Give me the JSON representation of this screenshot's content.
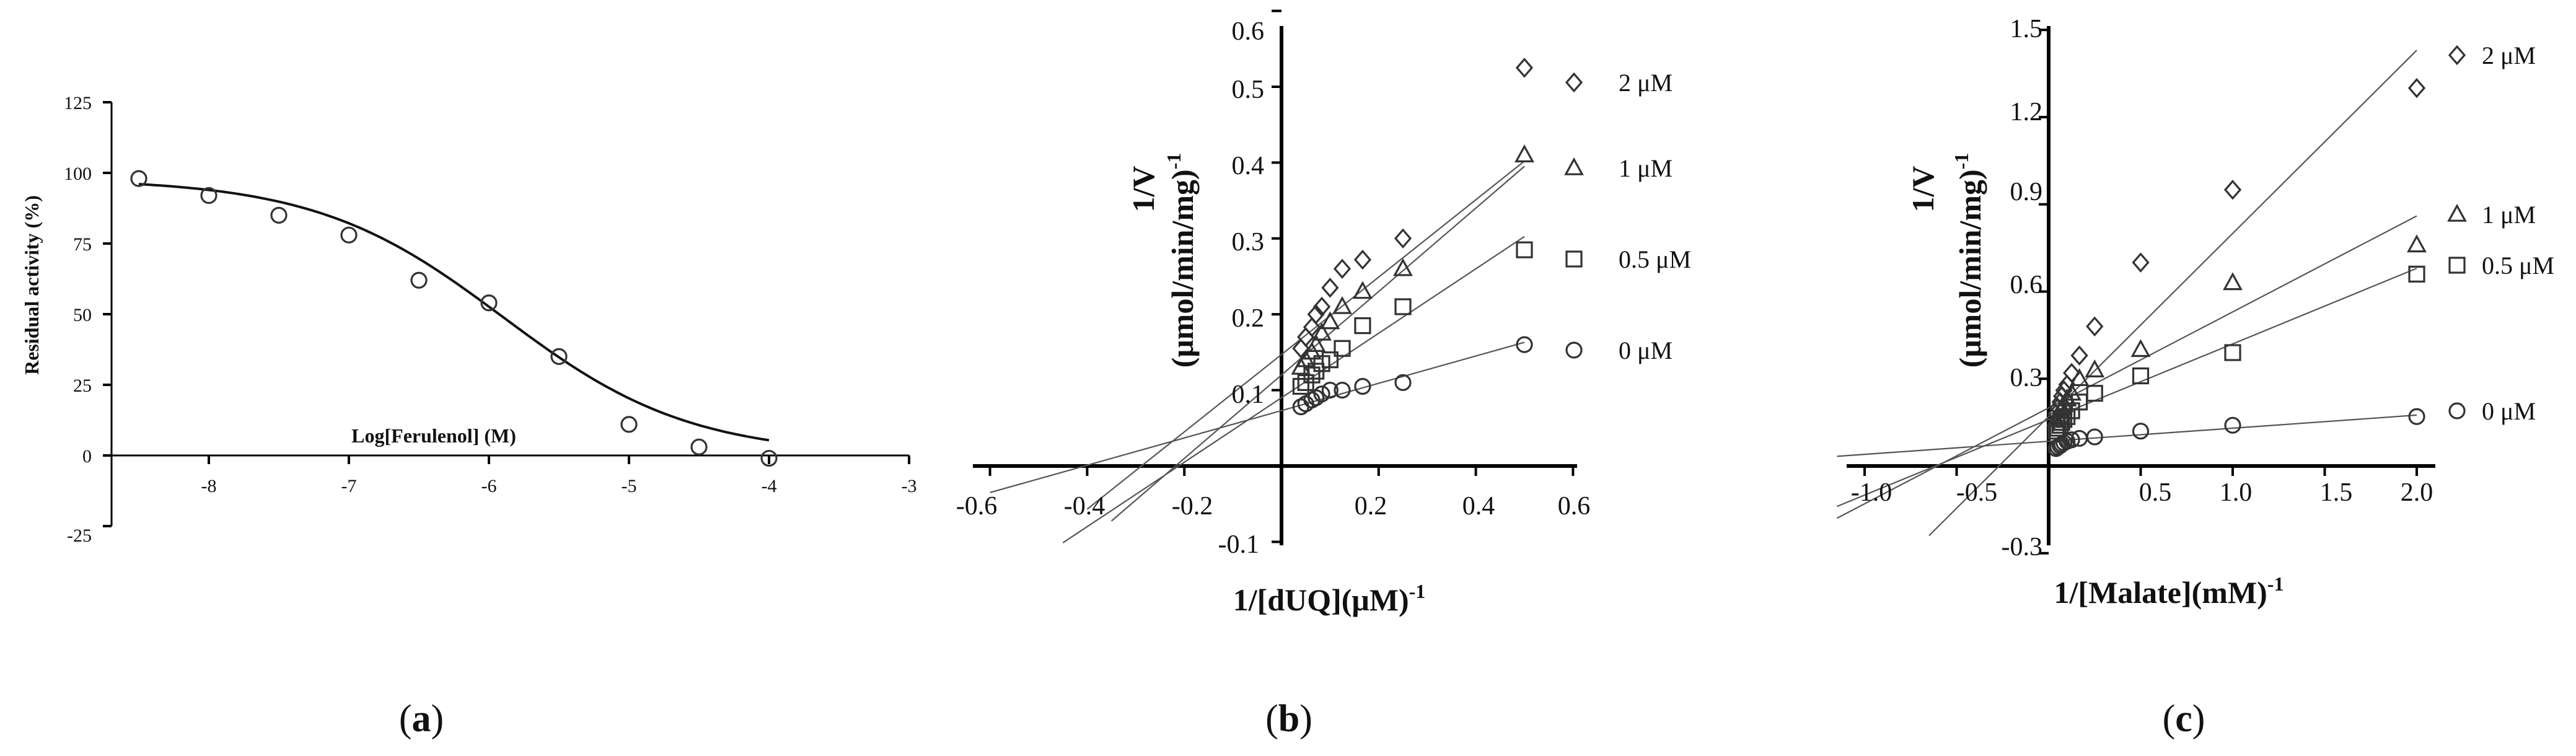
{
  "chart_data": [
    {
      "type": "scatter",
      "panel_label": "a",
      "xlabel": "Log[Ferulenol]  (M)",
      "ylabel": "Residual activity (%)",
      "xlim": [
        -8.8,
        -3
      ],
      "ylim": [
        -25,
        125
      ],
      "xticks": [
        "-8",
        "-7",
        "-6",
        "-5",
        "-4",
        "-3"
      ],
      "yticks": [
        "-25",
        "0",
        "25",
        "50",
        "75",
        "100",
        "125"
      ],
      "series": [
        {
          "name": "Residual activity",
          "marker": "circle",
          "x": [
            -8.5,
            -8.0,
            -7.5,
            -7.0,
            -6.5,
            -6.0,
            -5.5,
            -5.0,
            -4.5,
            -4.0
          ],
          "y": [
            98,
            92,
            85,
            78,
            62,
            54,
            35,
            11,
            3,
            -1
          ]
        }
      ],
      "fit": {
        "model": "sigmoidal dose-response",
        "top": 98,
        "bottom": 0,
        "logIC50": -5.9,
        "hill": -0.65
      }
    },
    {
      "type": "scatter",
      "panel_label": "b",
      "xlabel": "1/[dUQ](μM)",
      "xlabel_sup": "-1",
      "ylabel": "1/V",
      "ylabel2": "(μmol/min/mg)",
      "ylabel2_sup": "-1",
      "xlim": [
        -0.65,
        0.6
      ],
      "ylim": [
        -0.1,
        0.6
      ],
      "xticks": [
        "-0.6",
        "-0.4",
        "-0.2",
        "0.2",
        "0.4",
        "0.6"
      ],
      "yticks": [
        "-0.1",
        "0.1",
        "0.2",
        "0.3",
        "0.4",
        "0.5",
        "0.6"
      ],
      "series": [
        {
          "name": "2 μM",
          "marker": "diamond",
          "x": [
            0.5,
            0.25,
            0.167,
            0.125,
            0.1,
            0.083,
            0.071,
            0.0625,
            0.05,
            0.04
          ],
          "y": [
            0.525,
            0.3,
            0.272,
            0.26,
            0.235,
            0.21,
            0.2,
            0.183,
            0.17,
            0.155
          ],
          "fit": [
            0.51,
            0.147
          ]
        },
        {
          "name": "1 μM",
          "marker": "triangle",
          "x": [
            0.5,
            0.25,
            0.167,
            0.125,
            0.1,
            0.083,
            0.071,
            0.0625,
            0.05,
            0.04
          ],
          "y": [
            0.41,
            0.26,
            0.23,
            0.21,
            0.19,
            0.175,
            0.16,
            0.15,
            0.14,
            0.13
          ],
          "fit": [
            0.55,
            0.12
          ]
        },
        {
          "name": "0.5 μM",
          "marker": "square",
          "x": [
            0.5,
            0.25,
            0.167,
            0.125,
            0.1,
            0.083,
            0.071,
            0.0625,
            0.05,
            0.04
          ],
          "y": [
            0.285,
            0.21,
            0.185,
            0.155,
            0.14,
            0.135,
            0.125,
            0.12,
            0.11,
            0.105
          ],
          "fit": [
            0.425,
            0.09
          ]
        },
        {
          "name": "0 μM",
          "marker": "circle",
          "x": [
            0.5,
            0.25,
            0.167,
            0.125,
            0.1,
            0.083,
            0.071,
            0.0625,
            0.05,
            0.04
          ],
          "y": [
            0.16,
            0.11,
            0.105,
            0.1,
            0.1,
            0.095,
            0.09,
            0.087,
            0.082,
            0.078
          ],
          "fit": [
            0.18,
            0.073
          ]
        }
      ]
    },
    {
      "type": "scatter",
      "panel_label": "c",
      "xlabel": "1/[Malate](mM)",
      "xlabel_sup": "-1",
      "ylabel": "1/V",
      "ylabel2": "(μmol/min/mg)",
      "ylabel2_sup": "-1",
      "xlim": [
        -1.15,
        2.1
      ],
      "ylim": [
        -0.3,
        1.5
      ],
      "xticks": [
        "-1.0",
        "-0.5",
        "0.5",
        "1.0",
        "1.5",
        "2.0"
      ],
      "yticks": [
        "-0.3",
        "0.3",
        "0.6",
        "0.9",
        "1.2",
        "1.5"
      ],
      "series": [
        {
          "name": "2 μM",
          "marker": "diamond",
          "x": [
            2.0,
            1.0,
            0.5,
            0.25,
            0.167,
            0.125,
            0.1,
            0.083,
            0.071,
            0.0625,
            0.05,
            0.04
          ],
          "y": [
            1.3,
            0.95,
            0.7,
            0.48,
            0.38,
            0.32,
            0.28,
            0.26,
            0.24,
            0.22,
            0.2,
            0.18
          ],
          "fit": [
            0.63,
            0.17
          ]
        },
        {
          "name": "1 μM",
          "marker": "triangle",
          "x": [
            2.0,
            1.0,
            0.5,
            0.25,
            0.167,
            0.125,
            0.1,
            0.083,
            0.071,
            0.0625,
            0.05,
            0.04
          ],
          "y": [
            0.76,
            0.63,
            0.4,
            0.33,
            0.3,
            0.25,
            0.23,
            0.21,
            0.2,
            0.19,
            0.17,
            0.16
          ],
          "fit": [
            0.33,
            0.2
          ]
        },
        {
          "name": "0.5 μM",
          "marker": "square",
          "x": [
            2.0,
            1.0,
            0.5,
            0.25,
            0.167,
            0.125,
            0.1,
            0.083,
            0.071,
            0.0625,
            0.05,
            0.04
          ],
          "y": [
            0.66,
            0.39,
            0.31,
            0.25,
            0.22,
            0.19,
            0.17,
            0.16,
            0.15,
            0.14,
            0.13,
            0.12
          ],
          "fit": [
            0.26,
            0.16
          ]
        },
        {
          "name": "0 μM",
          "marker": "circle",
          "x": [
            2.0,
            1.0,
            0.5,
            0.25,
            0.167,
            0.125,
            0.1,
            0.083,
            0.071,
            0.0625,
            0.05,
            0.04
          ],
          "y": [
            0.17,
            0.14,
            0.12,
            0.1,
            0.095,
            0.09,
            0.085,
            0.08,
            0.075,
            0.07,
            0.065,
            0.06
          ],
          "fit": [
            0.045,
            0.085
          ]
        }
      ]
    }
  ]
}
